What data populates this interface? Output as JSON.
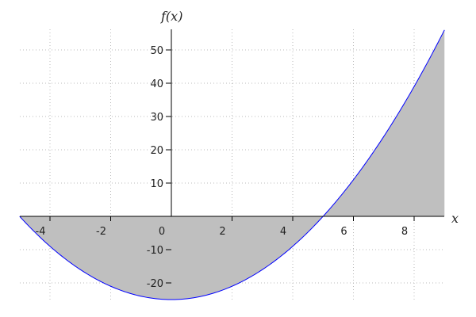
{
  "chart_data": {
    "type": "area",
    "function": "x^2 - 25",
    "xlabel": "x",
    "ylabel": "f(x)",
    "xlim": [
      -5,
      9
    ],
    "ylim": [
      -25,
      56
    ],
    "x_ticks": [
      -4,
      -2,
      0,
      2,
      4,
      6,
      8
    ],
    "x_tick_labels": [
      "-4",
      "-2",
      "0",
      "2",
      "4",
      "6",
      "8"
    ],
    "y_ticks": [
      -20,
      -10,
      10,
      20,
      30,
      40,
      50
    ],
    "y_tick_labels": [
      "-20",
      "-10",
      "10",
      "20",
      "30",
      "40",
      "50"
    ],
    "grid": true,
    "fill_to": 0,
    "colors": {
      "line": "#0000ff",
      "fill": "#bfbfbf",
      "axes": "#000000",
      "grid": "#bbbbbb"
    }
  }
}
